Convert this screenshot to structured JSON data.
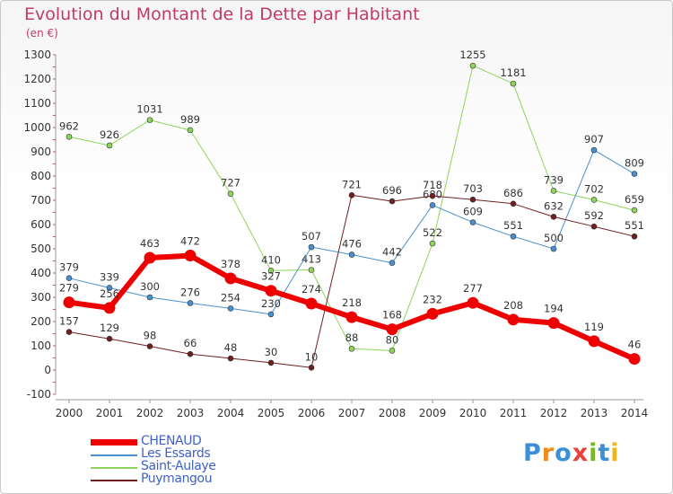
{
  "title": "Evolution du Montant de la Dette par Habitant",
  "unit": "(en €)",
  "logo": {
    "text": "Proxiti",
    "colors": [
      "#3a8fd6",
      "#f08a1c",
      "#3a8fd6",
      "#e8423a",
      "#78b82a",
      "#3a8fd6",
      "#f0b51c"
    ]
  },
  "chart_data": {
    "type": "line",
    "title": "Evolution du Montant de la Dette par Habitant",
    "ylabel": "(en €)",
    "x": [
      "2000",
      "2001",
      "2002",
      "2003",
      "2004",
      "2005",
      "2006",
      "2007",
      "2008",
      "2009",
      "2010",
      "2011",
      "2012",
      "2013",
      "2014"
    ],
    "yticks": [
      "-100",
      "0",
      "100",
      "200",
      "300",
      "400",
      "500",
      "600",
      "700",
      "800",
      "900",
      "1000",
      "1100",
      "1200",
      "1300"
    ],
    "ylim": [
      -100,
      1300
    ],
    "grid": false,
    "legend": "bottom-left",
    "series": [
      {
        "name": "Saint-Aulaye",
        "color": "#8fd45a",
        "width": 1,
        "values": [
          962,
          926,
          1031,
          989,
          727,
          410,
          413,
          88,
          80,
          522,
          1255,
          1181,
          739,
          702,
          659
        ]
      },
      {
        "name": "Les Essards",
        "color": "#4a8fcf",
        "width": 1,
        "values": [
          379,
          339,
          300,
          276,
          254,
          230,
          507,
          476,
          442,
          680,
          609,
          551,
          500,
          907,
          809
        ]
      },
      {
        "name": "Puymangou",
        "color": "#6e1f1f",
        "width": 1,
        "values": [
          157,
          129,
          98,
          66,
          48,
          30,
          10,
          721,
          696,
          718,
          703,
          686,
          632,
          592,
          551
        ]
      },
      {
        "name": "CHENAUD",
        "color": "#ee0000",
        "width": 6,
        "values": [
          279,
          256,
          463,
          472,
          378,
          327,
          274,
          218,
          168,
          232,
          277,
          208,
          194,
          119,
          46
        ]
      }
    ],
    "data_labels": {
      "Saint-Aulaye": [
        "962",
        "926",
        "1031",
        "989",
        "727",
        "410",
        "413",
        "88",
        "80",
        "522",
        "1255",
        "1181",
        "739",
        "702",
        "659"
      ],
      "Les Essards": [
        "379",
        "339",
        "300",
        "276",
        "254",
        "230",
        "507",
        "476",
        "442",
        "680",
        "609",
        "551",
        "500",
        "907",
        "809"
      ],
      "Puymangou": [
        "157",
        "129",
        "98",
        "66",
        "48",
        "30",
        "10",
        "721",
        "696",
        "718",
        "703",
        "686",
        "632",
        "592",
        "551"
      ],
      "CHENAUD": [
        "279",
        "256",
        "463",
        "472",
        "378",
        "327",
        "274",
        "218",
        "168",
        "232",
        "277",
        "208",
        "194",
        "119",
        "46"
      ]
    }
  },
  "legend": [
    {
      "label": "CHENAUD",
      "color": "#ee0000",
      "width": 6
    },
    {
      "label": "Les Essards",
      "color": "#4a8fcf",
      "width": 1
    },
    {
      "label": "Saint-Aulaye",
      "color": "#8fd45a",
      "width": 1
    },
    {
      "label": "Puymangou",
      "color": "#6e1f1f",
      "width": 1
    }
  ]
}
